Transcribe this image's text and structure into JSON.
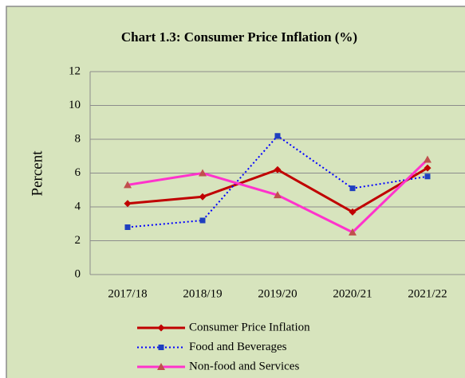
{
  "chart_data": {
    "type": "line",
    "title": "Chart 1.3: Consumer Price Inflation (%)",
    "y_label": "Percent",
    "categories": [
      "2017/18",
      "2018/19",
      "2019/20",
      "2020/21",
      "2021/22"
    ],
    "series": [
      {
        "name": "Consumer Price Inflation",
        "color": "#c00000",
        "marker": "diamond",
        "marker_color": "#c00000",
        "dash": "solid",
        "values": [
          4.2,
          4.6,
          6.2,
          3.7,
          6.3
        ]
      },
      {
        "name": "Food and Beverages",
        "color": "#0000ff",
        "marker": "square",
        "marker_color": "#1f3fbf",
        "dash": "dotted",
        "values": [
          2.8,
          3.2,
          8.2,
          5.1,
          5.8
        ]
      },
      {
        "name": "Non-food and Services",
        "color": "#ff33cc",
        "marker": "triangle",
        "marker_color": "#c0504d",
        "dash": "solid",
        "values": [
          5.3,
          6.0,
          4.7,
          2.5,
          6.8
        ]
      }
    ],
    "ylim": [
      0,
      12
    ],
    "yticks": [
      0,
      2,
      4,
      6,
      8,
      10,
      12
    ],
    "grid": true,
    "legend": "bottom"
  }
}
